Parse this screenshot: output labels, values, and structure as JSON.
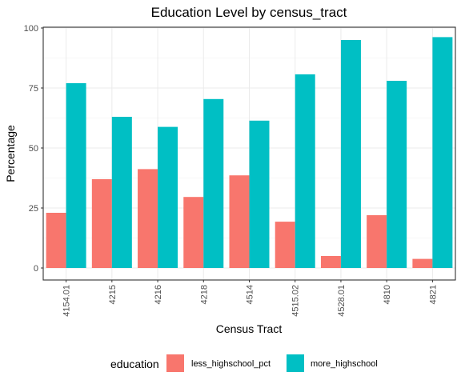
{
  "chart_data": {
    "type": "bar",
    "title": "Education Level by census_tract",
    "xlabel": "Census Tract",
    "ylabel": "Percentage",
    "categories": [
      "4154.01",
      "4215",
      "4216",
      "4218",
      "4514",
      "4515.02",
      "4528.01",
      "4810",
      "4821"
    ],
    "series": [
      {
        "name": "less_highschool_pct",
        "color": "#F8766D",
        "values": [
          23,
          37,
          41.2,
          29.6,
          38.6,
          19.3,
          5,
          22,
          3.8
        ]
      },
      {
        "name": "more_highschool",
        "color": "#00BFC4",
        "values": [
          77,
          63,
          58.8,
          70.4,
          61.4,
          80.7,
          95,
          78,
          96.2
        ]
      }
    ],
    "ylim": [
      0,
      100
    ],
    "yticks": [
      0,
      25,
      50,
      75,
      100
    ],
    "legend": {
      "title": "education",
      "position": "bottom"
    },
    "grid": true
  }
}
